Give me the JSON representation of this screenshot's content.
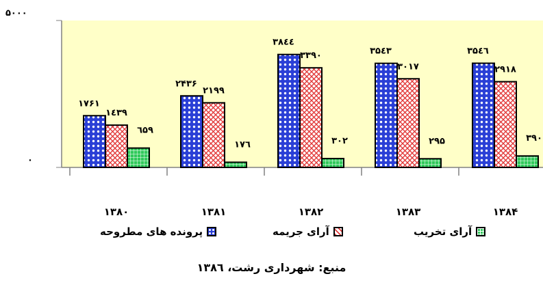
{
  "chart_data": {
    "type": "bar",
    "categories": [
      "۱۳۸۰",
      "۱۳۸۱",
      "۱۳۸۲",
      "۱۳۸۳",
      "۱۳۸۴"
    ],
    "series": [
      {
        "name": "پرونده های مطروحه",
        "values": [
          1761,
          2436,
          3844,
          3543,
          3546
        ],
        "labels": [
          "۱۷۶۱",
          "۲۴۳۶",
          "۳۸٤٤",
          "۳۵٤۳",
          "۳۵٤٦"
        ],
        "color": "#2a3fd6"
      },
      {
        "name": "آرای جریمه",
        "values": [
          1439,
          2199,
          3390,
          3017,
          2918
        ],
        "labels": [
          "۱٤۳۹",
          "۲۱۹۹",
          "۳۳۹۰",
          "۳۰۱۷",
          "۲۹۱۸"
        ],
        "color": "#e23a3a"
      },
      {
        "name": "آرای تخریب",
        "values": [
          659,
          176,
          302,
          295,
          390
        ],
        "labels": [
          "٦۵۹",
          "۱۷٦",
          "۳۰۲",
          "۲۹۵",
          "۳۹۰"
        ],
        "color": "#2fc95a"
      }
    ],
    "ylim": [
      0,
      5000
    ],
    "y_tick_labels": [
      "۰",
      "۵۰۰۰"
    ],
    "plot_background": "#ffffc8",
    "legend_position": "bottom",
    "source": "منبع: شهرداری رشت، ۱۳۸٦"
  }
}
